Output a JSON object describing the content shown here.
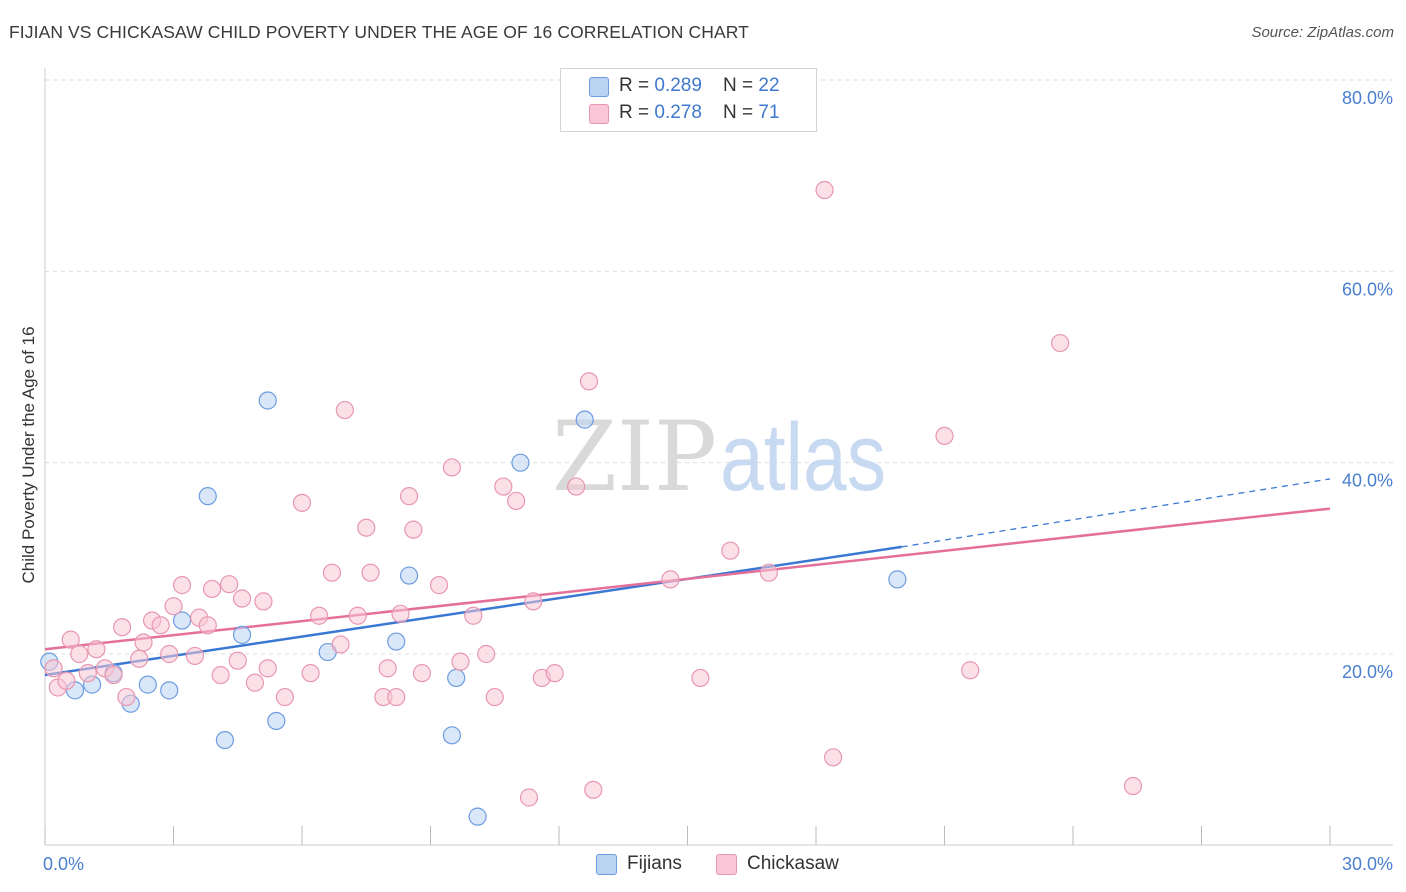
{
  "header": {
    "title": "FIJIAN VS CHICKASAW CHILD POVERTY UNDER THE AGE OF 16 CORRELATION CHART",
    "source": "Source: ZipAtlas.com"
  },
  "watermark": {
    "zip": "ZIP",
    "atlas": "atlas"
  },
  "legend": {
    "r_label": "R = ",
    "n_label": "N = ",
    "rows": [
      {
        "r": "0.289",
        "n": "22"
      },
      {
        "r": "0.278",
        "n": "71"
      }
    ]
  },
  "colors": {
    "fijians_fill": "#b9d3f3",
    "fijians_stroke": "#6d9de0",
    "fijians_line": "#3a78d4",
    "chickasaw_fill": "#f8c6d6",
    "chickasaw_stroke": "#e897b1",
    "chickasaw_line": "#e4709a",
    "grid": "#dddddd",
    "tick_text": "#4a7fd0"
  },
  "chart_data": {
    "type": "scatter",
    "title": "FIJIAN VS CHICKASAW CHILD POVERTY UNDER THE AGE OF 16 CORRELATION CHART",
    "xlabel": "",
    "ylabel": "Child Poverty Under the Age of 16",
    "xlim": [
      0,
      30
    ],
    "ylim": [
      0,
      82
    ],
    "x_ticks": [
      "0.0%",
      "30.0%"
    ],
    "y_ticks": [
      {
        "value": 20,
        "label": "20.0%"
      },
      {
        "value": 40,
        "label": "40.0%"
      },
      {
        "value": 60,
        "label": "60.0%"
      },
      {
        "value": 80,
        "label": "80.0%"
      }
    ],
    "grid": true,
    "legend_position": "top-center",
    "series": [
      {
        "name": "Fijians",
        "points": [
          [
            0.1,
            19.2
          ],
          [
            0.7,
            16.2
          ],
          [
            1.1,
            16.8
          ],
          [
            1.6,
            18.0
          ],
          [
            2.0,
            14.8
          ],
          [
            2.4,
            16.8
          ],
          [
            2.9,
            16.2
          ],
          [
            3.2,
            23.5
          ],
          [
            3.8,
            36.5
          ],
          [
            4.2,
            11.0
          ],
          [
            4.6,
            22.0
          ],
          [
            5.2,
            46.5
          ],
          [
            5.4,
            13.0
          ],
          [
            6.6,
            20.2
          ],
          [
            8.5,
            28.2
          ],
          [
            8.2,
            21.3
          ],
          [
            9.5,
            11.5
          ],
          [
            9.6,
            17.5
          ],
          [
            10.1,
            3.0
          ],
          [
            11.1,
            40.0
          ],
          [
            12.6,
            44.5
          ],
          [
            19.9,
            27.8
          ]
        ],
        "trend": {
          "x0": 0,
          "y0": 17.8,
          "x1": 20.0,
          "y1": 31.2,
          "dashed_to_x": 30,
          "dashed_to_y": 38.3
        }
      },
      {
        "name": "Chickasaw",
        "points": [
          [
            0.2,
            18.5
          ],
          [
            0.3,
            16.5
          ],
          [
            0.5,
            17.2
          ],
          [
            0.6,
            21.5
          ],
          [
            0.8,
            20.0
          ],
          [
            1.0,
            18.0
          ],
          [
            1.2,
            20.5
          ],
          [
            1.4,
            18.5
          ],
          [
            1.6,
            17.8
          ],
          [
            1.8,
            22.8
          ],
          [
            1.9,
            15.5
          ],
          [
            2.2,
            19.5
          ],
          [
            2.3,
            21.2
          ],
          [
            2.5,
            23.5
          ],
          [
            2.7,
            23.0
          ],
          [
            2.9,
            20.0
          ],
          [
            3.0,
            25.0
          ],
          [
            3.2,
            27.2
          ],
          [
            3.5,
            19.8
          ],
          [
            3.6,
            23.8
          ],
          [
            3.8,
            23.0
          ],
          [
            3.9,
            26.8
          ],
          [
            4.1,
            17.8
          ],
          [
            4.3,
            27.3
          ],
          [
            4.5,
            19.3
          ],
          [
            4.6,
            25.8
          ],
          [
            4.9,
            17.0
          ],
          [
            5.1,
            25.5
          ],
          [
            5.2,
            18.5
          ],
          [
            5.6,
            15.5
          ],
          [
            6.0,
            35.8
          ],
          [
            6.2,
            18.0
          ],
          [
            6.4,
            24.0
          ],
          [
            6.7,
            28.5
          ],
          [
            6.9,
            21.0
          ],
          [
            7.0,
            45.5
          ],
          [
            7.3,
            24.0
          ],
          [
            7.5,
            33.2
          ],
          [
            7.6,
            28.5
          ],
          [
            7.9,
            15.5
          ],
          [
            8.0,
            18.5
          ],
          [
            8.2,
            15.5
          ],
          [
            8.3,
            24.2
          ],
          [
            8.5,
            36.5
          ],
          [
            8.6,
            33.0
          ],
          [
            8.8,
            18.0
          ],
          [
            9.2,
            27.2
          ],
          [
            9.5,
            39.5
          ],
          [
            9.7,
            19.2
          ],
          [
            10.0,
            24.0
          ],
          [
            10.3,
            20.0
          ],
          [
            10.5,
            15.5
          ],
          [
            10.7,
            37.5
          ],
          [
            11.0,
            36.0
          ],
          [
            11.3,
            5.0
          ],
          [
            11.4,
            25.5
          ],
          [
            11.6,
            17.5
          ],
          [
            11.9,
            18.0
          ],
          [
            12.4,
            37.5
          ],
          [
            12.7,
            48.5
          ],
          [
            12.8,
            5.8
          ],
          [
            14.6,
            27.8
          ],
          [
            15.3,
            17.5
          ],
          [
            16.0,
            30.8
          ],
          [
            16.9,
            28.5
          ],
          [
            18.2,
            68.5
          ],
          [
            18.4,
            9.2
          ],
          [
            21.0,
            42.8
          ],
          [
            21.6,
            18.3
          ],
          [
            23.7,
            52.5
          ],
          [
            25.4,
            6.2
          ]
        ],
        "trend": {
          "x0": 0,
          "y0": 20.5,
          "x1": 30,
          "y1": 35.2
        }
      }
    ]
  }
}
